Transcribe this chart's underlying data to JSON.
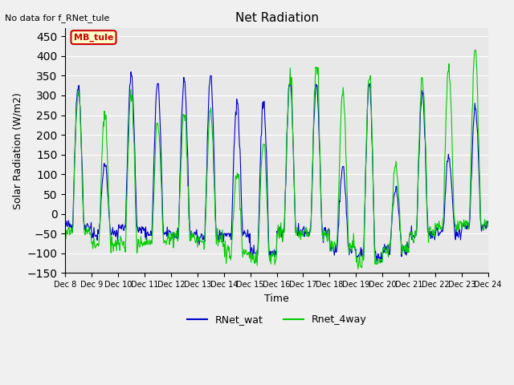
{
  "title": "Net Radiation",
  "xlabel": "Time",
  "ylabel": "Solar Radiation (W/m2)",
  "annotation": "No data for f_RNet_tule",
  "legend_label": "MB_tule",
  "series1_label": "RNet_wat",
  "series2_label": "Rnet_4way",
  "series1_color": "#0000cc",
  "series2_color": "#00cc00",
  "ylim": [
    -150,
    470
  ],
  "yticks": [
    -150,
    -100,
    -50,
    0,
    50,
    100,
    150,
    200,
    250,
    300,
    350,
    400,
    450
  ],
  "bg_color": "#e8e8e8",
  "fig_bg": "#f0f0f0",
  "n_days": 16,
  "start_day": 8,
  "end_day": 24,
  "blue_peaks": [
    325,
    120,
    350,
    330,
    335,
    350,
    280,
    285,
    330,
    325,
    120,
    330,
    70,
    305,
    140,
    265
  ],
  "green_peaks": [
    300,
    250,
    300,
    230,
    250,
    260,
    100,
    175,
    345,
    370,
    300,
    350,
    120,
    345,
    360,
    415
  ],
  "blue_nights": [
    -30.0,
    -50.0,
    -35.0,
    -50.0,
    -50.0,
    -60.0,
    -55.0,
    -100.0,
    -45.0,
    -45.0,
    -90.0,
    -110.0,
    -90.0,
    -50.0,
    -45.0,
    -30.0
  ],
  "green_nights": [
    -45.0,
    -80.0,
    -80.0,
    -70.0,
    -60.0,
    -65.0,
    -100.0,
    -110.0,
    -50.0,
    -50.0,
    -80.0,
    -120.0,
    -90.0,
    -50.0,
    -30.0,
    -25.0
  ]
}
